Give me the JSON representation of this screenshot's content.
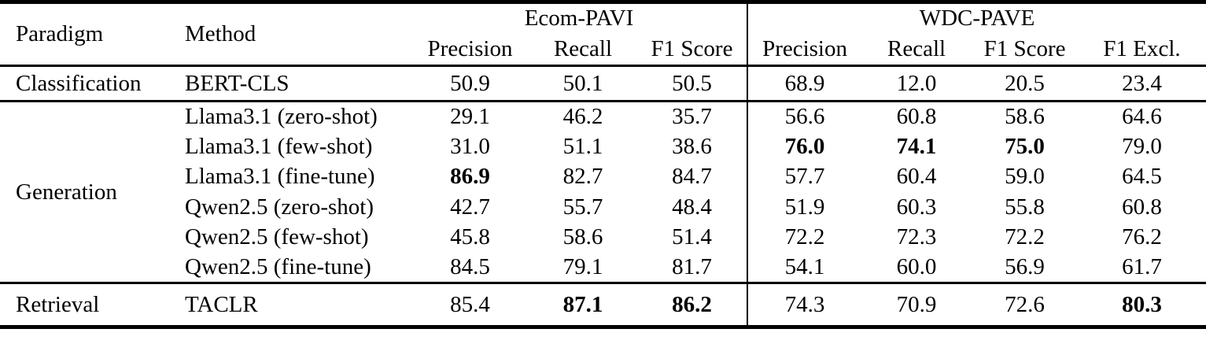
{
  "table": {
    "headers": {
      "paradigm": "Paradigm",
      "method": "Method",
      "groups": [
        {
          "label": "Ecom-PAVI",
          "columns": [
            "Precision",
            "Recall",
            "F1 Score"
          ]
        },
        {
          "label": "WDC-PAVE",
          "columns": [
            "Precision",
            "Recall",
            "F1 Score",
            "F1 Excl."
          ]
        }
      ]
    },
    "body": [
      {
        "paradigm": "Classification",
        "rows": [
          {
            "method": "BERT-CLS",
            "values": [
              "50.9",
              "50.1",
              "50.5",
              "68.9",
              "12.0",
              "20.5",
              "23.4"
            ],
            "bold_indices": []
          }
        ]
      },
      {
        "paradigm": "Generation",
        "rows": [
          {
            "method": "Llama3.1 (zero-shot)",
            "values": [
              "29.1",
              "46.2",
              "35.7",
              "56.6",
              "60.8",
              "58.6",
              "64.6"
            ],
            "bold_indices": []
          },
          {
            "method": "Llama3.1 (few-shot)",
            "values": [
              "31.0",
              "51.1",
              "38.6",
              "76.0",
              "74.1",
              "75.0",
              "79.0"
            ],
            "bold_indices": [
              3,
              4,
              5
            ]
          },
          {
            "method": "Llama3.1 (fine-tune)",
            "values": [
              "86.9",
              "82.7",
              "84.7",
              "57.7",
              "60.4",
              "59.0",
              "64.5"
            ],
            "bold_indices": [
              0
            ]
          },
          {
            "method": "Qwen2.5 (zero-shot)",
            "values": [
              "42.7",
              "55.7",
              "48.4",
              "51.9",
              "60.3",
              "55.8",
              "60.8"
            ],
            "bold_indices": []
          },
          {
            "method": "Qwen2.5 (few-shot)",
            "values": [
              "45.8",
              "58.6",
              "51.4",
              "72.2",
              "72.3",
              "72.2",
              "76.2"
            ],
            "bold_indices": []
          },
          {
            "method": "Qwen2.5 (fine-tune)",
            "values": [
              "84.5",
              "79.1",
              "81.7",
              "54.1",
              "60.0",
              "56.9",
              "61.7"
            ],
            "bold_indices": []
          }
        ]
      },
      {
        "paradigm": "Retrieval",
        "rows": [
          {
            "method": "TACLR",
            "values": [
              "85.4",
              "87.1",
              "86.2",
              "74.3",
              "70.9",
              "72.6",
              "80.3"
            ],
            "bold_indices": [
              1,
              2,
              6
            ]
          }
        ]
      }
    ],
    "colors": {
      "text": "#000000",
      "background": "#ffffff",
      "rule": "#000000"
    }
  }
}
